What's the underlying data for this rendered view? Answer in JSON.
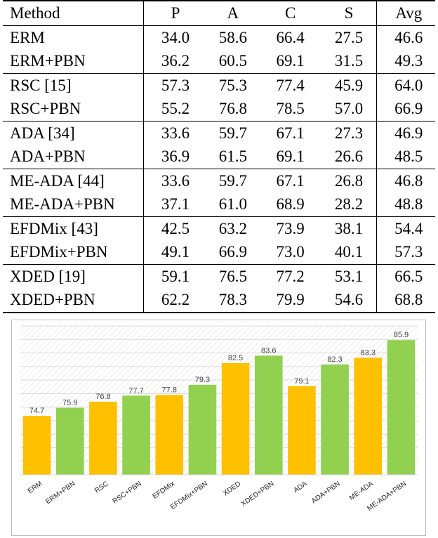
{
  "table": {
    "headers": [
      "Method",
      "P",
      "A",
      "C",
      "S",
      "Avg"
    ],
    "groups": [
      [
        [
          "ERM",
          "34.0",
          "58.6",
          "66.4",
          "27.5",
          "46.6"
        ],
        [
          "ERM+PBN",
          "36.2",
          "60.5",
          "69.1",
          "31.5",
          "49.3"
        ]
      ],
      [
        [
          "RSC [15]",
          "57.3",
          "75.3",
          "77.4",
          "45.9",
          "64.0"
        ],
        [
          "RSC+PBN",
          "55.2",
          "76.8",
          "78.5",
          "57.0",
          "66.9"
        ]
      ],
      [
        [
          "ADA [34]",
          "33.6",
          "59.7",
          "67.1",
          "27.3",
          "46.9"
        ],
        [
          "ADA+PBN",
          "36.9",
          "61.5",
          "69.1",
          "26.6",
          "48.5"
        ]
      ],
      [
        [
          "ME-ADA [44]",
          "33.6",
          "59.7",
          "67.1",
          "26.8",
          "46.8"
        ],
        [
          "ME-ADA+PBN",
          "37.1",
          "61.0",
          "68.9",
          "28.2",
          "48.8"
        ]
      ],
      [
        [
          "EFDMix [43]",
          "42.5",
          "63.2",
          "73.9",
          "38.1",
          "54.4"
        ],
        [
          "EFDMix+PBN",
          "49.1",
          "66.9",
          "73.0",
          "40.1",
          "57.3"
        ]
      ],
      [
        [
          "XDED [19]",
          "59.1",
          "76.5",
          "77.2",
          "53.1",
          "66.5"
        ],
        [
          "XDED+PBN",
          "62.2",
          "78.3",
          "79.9",
          "54.6",
          "68.8"
        ]
      ]
    ]
  },
  "chart_data": {
    "type": "bar",
    "categories": [
      "ERM",
      "ERM+PBN",
      "RSC",
      "RSC+PBN",
      "EFDMix",
      "EFDMix+PBN",
      "XDED",
      "XDED+PBN",
      "ADA",
      "ADA+PBN",
      "ME-ADA",
      "ME-ADA+PBN"
    ],
    "values": [
      74.7,
      75.9,
      76.8,
      77.7,
      77.8,
      79.3,
      82.5,
      83.6,
      79.1,
      82.3,
      83.3,
      85.9
    ],
    "value_labels": [
      "74.7",
      "75.9",
      "76.8",
      "77.7",
      "77.8",
      "79.3",
      "82.5",
      "83.6",
      "79.1",
      "82.3",
      "83.3",
      "85.9"
    ],
    "bar_colors": [
      "#ffc000",
      "#92d050",
      "#ffc000",
      "#92d050",
      "#ffc000",
      "#92d050",
      "#ffc000",
      "#92d050",
      "#ffc000",
      "#92d050",
      "#ffc000",
      "#92d050"
    ],
    "ylim": [
      66,
      88
    ],
    "grid": true,
    "title": "",
    "xlabel": "",
    "ylabel": ""
  }
}
